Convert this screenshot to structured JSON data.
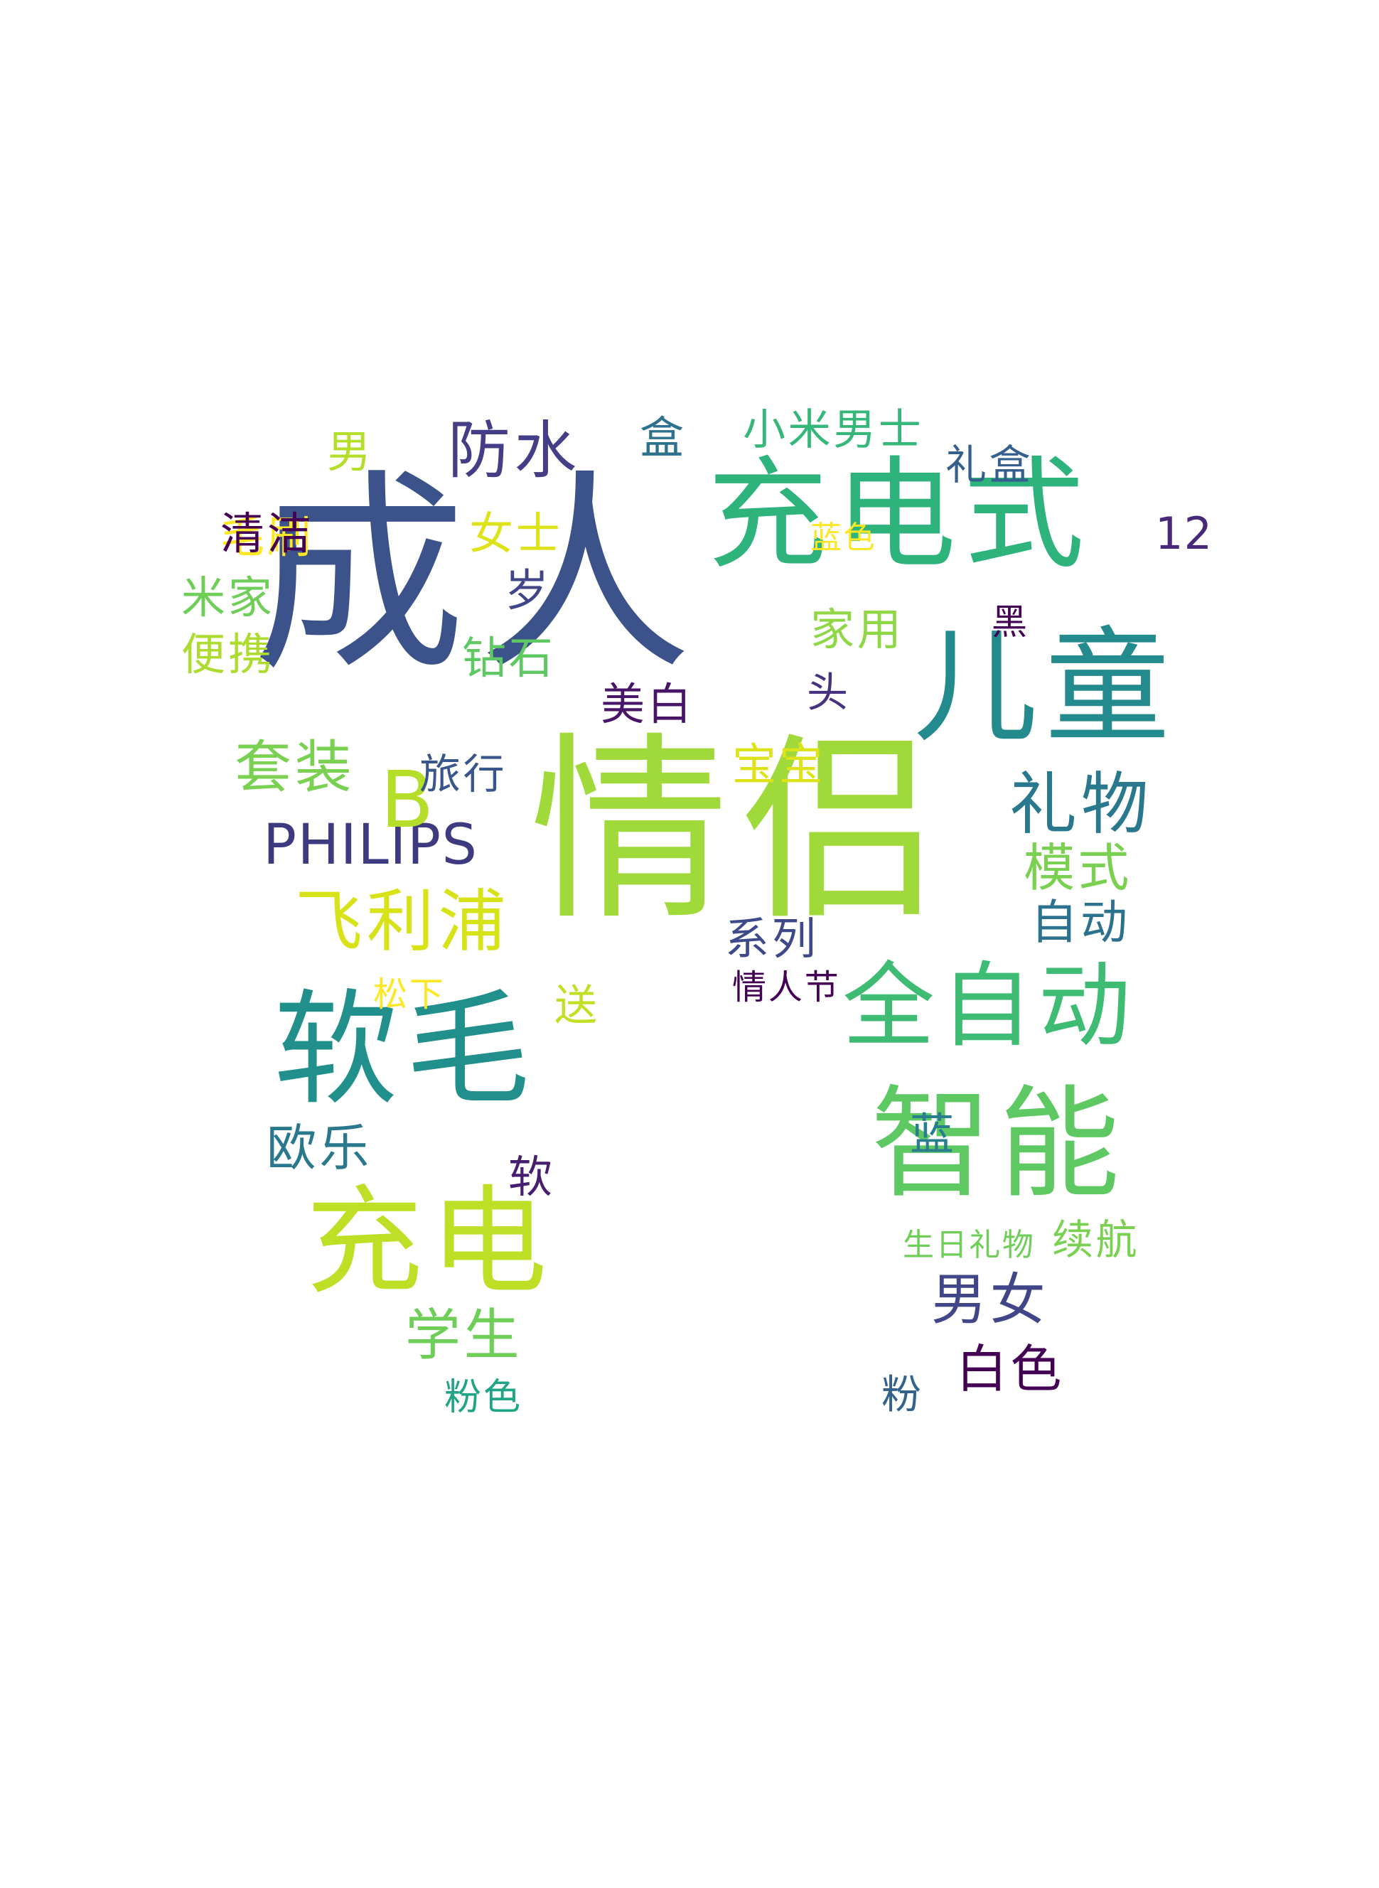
{
  "words": {
    "qinglv": {
      "text": "情侣",
      "color": "#9fd93a"
    },
    "chengren": {
      "text": "成人",
      "color": "#3b528b"
    },
    "chongdianshi": {
      "text": "充电式",
      "color": "#2db37b"
    },
    "ertong": {
      "text": "儿童",
      "color": "#238a8d"
    },
    "ruanmao": {
      "text": "软毛",
      "color": "#21908d"
    },
    "zhineng": {
      "text": "智能",
      "color": "#5ec962"
    },
    "chongdian": {
      "text": "充电",
      "color": "#bddf26"
    },
    "quanzidong": {
      "text": "全自动",
      "color": "#3fbc73"
    },
    "feilipu": {
      "text": "飞利浦",
      "color": "#d8e219"
    },
    "philips": {
      "text": "PHILIPS",
      "color": "#3e3a80"
    },
    "fangshui": {
      "text": "防水",
      "color": "#433e85"
    },
    "liwu": {
      "text": "礼物",
      "color": "#2a788e"
    },
    "nannv": {
      "text": "男女",
      "color": "#404688"
    },
    "baise": {
      "text": "白色",
      "color": "#440154"
    },
    "moshi": {
      "text": "模式",
      "color": "#7ad151"
    },
    "zidong": {
      "text": "自动",
      "color": "#2c728e"
    },
    "taozhuang": {
      "text": "套装",
      "color": "#7ad151"
    },
    "xuesheng": {
      "text": "学生",
      "color": "#6ece58"
    },
    "oule": {
      "text": "欧乐",
      "color": "#2a788e"
    },
    "b": {
      "text": "B",
      "color": "#b5de2b"
    },
    "maoshua": {
      "text": "毛刷",
      "color": "#fde725"
    },
    "he": {
      "text": "盒",
      "color": "#2c728e"
    },
    "xiaominanshi": {
      "text": "小米男士",
      "color": "#35b779"
    },
    "nan": {
      "text": "男",
      "color": "#b5de2b"
    },
    "lihe": {
      "text": "礼盒",
      "color": "#355f8d"
    },
    "twelve": {
      "text": "12",
      "color": "#482878"
    },
    "lanse_small": {
      "text": "蓝色",
      "color": "#fde725"
    },
    "qingjie": {
      "text": "清洁",
      "color": "#440154"
    },
    "mijia": {
      "text": "米家",
      "color": "#6ece58"
    },
    "nvshi": {
      "text": "女士",
      "color": "#dde318"
    },
    "sui": {
      "text": "岁",
      "color": "#404688"
    },
    "bianxie": {
      "text": "便携",
      "color": "#addc30"
    },
    "jiayong": {
      "text": "家用",
      "color": "#8fd744"
    },
    "hei": {
      "text": "黑",
      "color": "#440154"
    },
    "zuanshi": {
      "text": "钻石",
      "color": "#5ec962"
    },
    "meibai": {
      "text": "美白",
      "color": "#481567"
    },
    "tou": {
      "text": "头",
      "color": "#46327e"
    },
    "lvxing": {
      "text": "旅行",
      "color": "#39568c"
    },
    "baobao": {
      "text": "宝宝",
      "color": "#dde318"
    },
    "xilie": {
      "text": "系列",
      "color": "#3e4989"
    },
    "qingrenjie": {
      "text": "情人节",
      "color": "#440154"
    },
    "songxia": {
      "text": "松下",
      "color": "#fde725"
    },
    "song": {
      "text": "送",
      "color": "#c2df23"
    },
    "lan": {
      "text": "蓝",
      "color": "#287d8e"
    },
    "ruan": {
      "text": "软",
      "color": "#481f70"
    },
    "shengrililiwu": {
      "text": "生日礼物",
      "color": "#6ece58"
    },
    "xuhang": {
      "text": "续航",
      "color": "#7ad151"
    },
    "fense": {
      "text": "粉色",
      "color": "#20a486"
    },
    "fen": {
      "text": "粉",
      "color": "#33638d"
    }
  }
}
